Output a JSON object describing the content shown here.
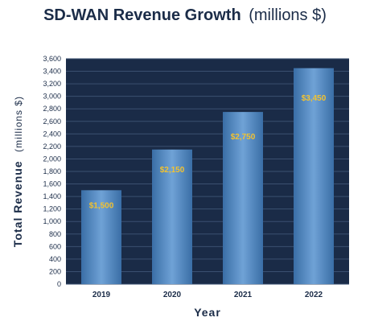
{
  "chart_data": {
    "type": "bar",
    "title": "SD-WAN Revenue Growth",
    "title_unit": "(millions $)",
    "xlabel": "Year",
    "ylabel": "Total Revenue",
    "ylabel_unit": "(millions $)",
    "categories": [
      "2019",
      "2020",
      "2021",
      "2022"
    ],
    "values": [
      1500,
      2150,
      2750,
      3450
    ],
    "data_labels": [
      "$1,500",
      "$2,150",
      "$2,750",
      "$3,450"
    ],
    "ylim": [
      0,
      3600
    ],
    "yticks": [
      0,
      200,
      400,
      600,
      800,
      1000,
      1200,
      1400,
      1600,
      1800,
      2000,
      2200,
      2400,
      2600,
      2800,
      3000,
      3200,
      3400,
      3600
    ],
    "ytick_labels": [
      "0",
      "200",
      "400",
      "600",
      "800",
      "1,000",
      "1,200",
      "1,400",
      "1,600",
      "1,800",
      "2,000",
      "2,200",
      "2,400",
      "2,600",
      "2,800",
      "3,000",
      "3,200",
      "3,400",
      "3,600"
    ],
    "grid": true,
    "legend": "none",
    "colors": {
      "plot_background": "#1a2b47",
      "grid": "#3b5070",
      "bar_light": "#6fa2d6",
      "bar_dark": "#3a6ea6",
      "data_label": "#f2c230",
      "text": "#1b2c48"
    }
  }
}
